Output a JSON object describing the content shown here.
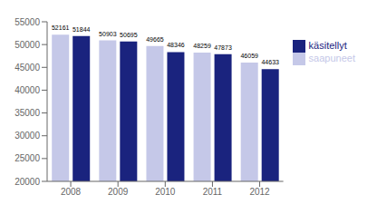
{
  "chart_data": {
    "type": "bar",
    "categories": [
      "2008",
      "2009",
      "2010",
      "2011",
      "2012"
    ],
    "series": [
      {
        "name": "saapuneet",
        "color": "#c5c8e8",
        "values": [
          52161,
          50903,
          49665,
          48259,
          46059
        ]
      },
      {
        "name": "käsitellyt",
        "color": "#1a237e",
        "values": [
          51844,
          50695,
          48346,
          47873,
          44633
        ]
      }
    ],
    "ylim": [
      20000,
      55000
    ],
    "yticks": [
      20000,
      25000,
      30000,
      35000,
      40000,
      45000,
      50000,
      55000
    ],
    "grid": false,
    "legend": "right",
    "data_labels": true
  }
}
